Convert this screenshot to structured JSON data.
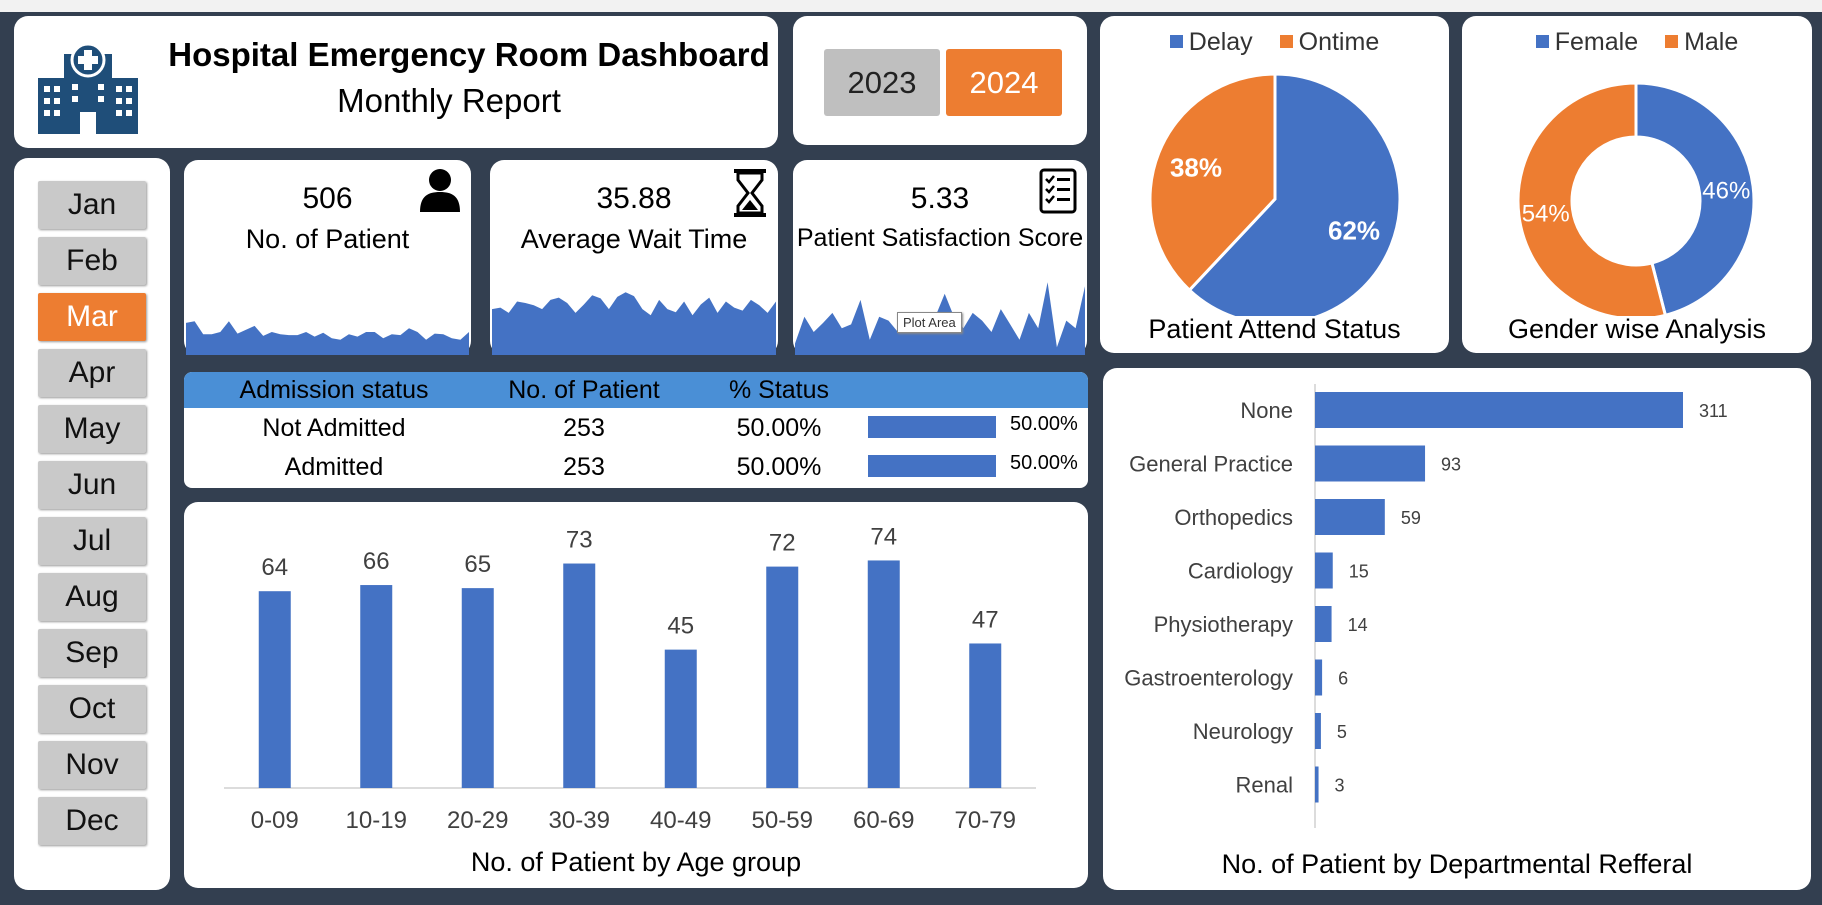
{
  "header": {
    "title": "Hospital Emergency Room Dashboard",
    "subtitle": "Monthly Report",
    "logo_icon": "hospital-building-icon"
  },
  "years": [
    "2023",
    "2024"
  ],
  "selected_year": "2024",
  "months": [
    "Jan",
    "Feb",
    "Mar",
    "Apr",
    "May",
    "Jun",
    "Jul",
    "Aug",
    "Sep",
    "Oct",
    "Nov",
    "Dec"
  ],
  "selected_month": "Mar",
  "kpis": {
    "patients": {
      "value": "506",
      "label": "No. of Patient",
      "icon": "person-icon"
    },
    "wait": {
      "value": "35.88",
      "label": "Average Wait Time",
      "icon": "hourglass-icon"
    },
    "score": {
      "value": "5.33",
      "label": "Patient Satisfaction Score",
      "icon": "checklist-icon",
      "tooltip": "Plot Area"
    }
  },
  "sparklines": {
    "patients": [
      0.42,
      0.44,
      0.27,
      0.27,
      0.3,
      0.44,
      0.28,
      0.33,
      0.38,
      0.25,
      0.3,
      0.27,
      0.26,
      0.26,
      0.3,
      0.24,
      0.29,
      0.22,
      0.2,
      0.27,
      0.24,
      0.3,
      0.3,
      0.22,
      0.27,
      0.26,
      0.35,
      0.3,
      0.2,
      0.28,
      0.27,
      0.22,
      0.2,
      0.3
    ],
    "wait": [
      0.6,
      0.62,
      0.55,
      0.7,
      0.68,
      0.65,
      0.6,
      0.72,
      0.75,
      0.68,
      0.55,
      0.66,
      0.78,
      0.74,
      0.6,
      0.76,
      0.82,
      0.77,
      0.6,
      0.52,
      0.72,
      0.6,
      0.56,
      0.7,
      0.52,
      0.66,
      0.75,
      0.55,
      0.7,
      0.62,
      0.58,
      0.72,
      0.65,
      0.55,
      0.7
    ],
    "score": [
      0.15,
      0.5,
      0.3,
      0.42,
      0.55,
      0.35,
      0.4,
      0.72,
      0.2,
      0.5,
      0.45,
      0.3,
      0.38,
      0.55,
      0.35,
      0.5,
      0.8,
      0.5,
      0.35,
      0.55,
      0.45,
      0.3,
      0.6,
      0.4,
      0.2,
      0.55,
      0.35,
      0.95,
      0.1,
      0.45,
      0.35,
      0.9
    ]
  },
  "admission": {
    "headers": [
      "Admission status",
      "No. of Patient",
      "% Status"
    ],
    "rows": [
      {
        "status": "Not Admitted",
        "count": "253",
        "pct": "50.00%",
        "bar_label": "50.00%",
        "fraction": 0.5
      },
      {
        "status": "Admitted",
        "count": "253",
        "pct": "50.00%",
        "bar_label": "50.00%",
        "fraction": 0.5
      }
    ]
  },
  "attend_pie": {
    "legend": [
      {
        "name": "Delay",
        "color": "#4472c4"
      },
      {
        "name": "Ontime",
        "color": "#ed7d31"
      }
    ],
    "title": "Patient Attend Status"
  },
  "gender_pie": {
    "legend": [
      {
        "name": "Female",
        "color": "#4472c4"
      },
      {
        "name": "Male",
        "color": "#ed7d31"
      }
    ],
    "title": "Gender wise Analysis"
  },
  "age_title": "No. of Patient by Age group",
  "ref_title": "No. of Patient by Departmental Refferal",
  "chart_data": [
    {
      "type": "pie",
      "title": "Patient Attend Status",
      "categories": [
        "Delay",
        "Ontime"
      ],
      "values": [
        62,
        38
      ],
      "labels": [
        "62%",
        "38%"
      ],
      "colors": [
        "#4472c4",
        "#ed7d31"
      ],
      "legend": "top"
    },
    {
      "type": "pie",
      "title": "Gender wise Analysis",
      "categories": [
        "Female",
        "Male"
      ],
      "values": [
        46,
        54
      ],
      "labels": [
        "46%",
        "54%"
      ],
      "colors": [
        "#4472c4",
        "#ed7d31"
      ],
      "legend": "top"
    },
    {
      "type": "bar",
      "title": "No. of Patient by Age group",
      "categories": [
        "0-09",
        "10-19",
        "20-29",
        "30-39",
        "40-49",
        "50-59",
        "60-69",
        "70-79"
      ],
      "values": [
        64,
        66,
        65,
        73,
        45,
        72,
        74,
        47
      ],
      "ylim": [
        0,
        80
      ],
      "color": "#4472c4"
    },
    {
      "type": "bar",
      "orientation": "horizontal",
      "title": "No. of Patient by Departmental Refferal",
      "categories": [
        "None",
        "General Practice",
        "Orthopedics",
        "Cardiology",
        "Physiotherapy",
        "Gastroenterology",
        "Neurology",
        "Renal"
      ],
      "values": [
        311,
        93,
        59,
        15,
        14,
        6,
        5,
        3
      ],
      "color": "#4472c4"
    }
  ]
}
